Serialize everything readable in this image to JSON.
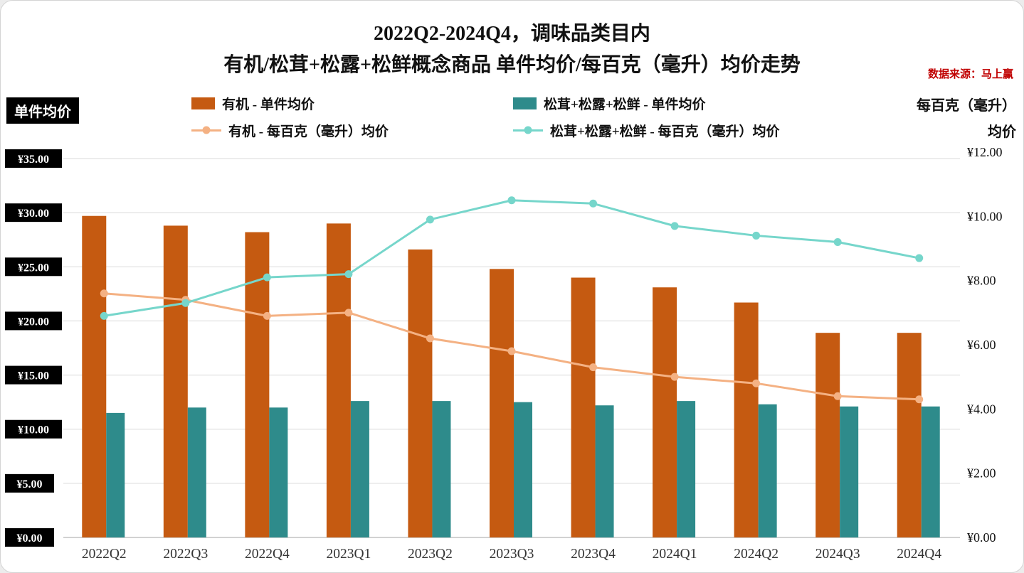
{
  "page": {
    "title_line1": "2022Q2-2024Q4，调味品类目内",
    "title_line2": "有机/松茸+松露+松鲜概念商品 单件均价/每百克（毫升）均价走势",
    "source_note": "数据来源：马上赢"
  },
  "left_axis": {
    "title": "单件均价"
  },
  "right_axis": {
    "title_lines": [
      "每百克（毫升）",
      "均价"
    ]
  },
  "colors": {
    "source_note": "#C00000",
    "gridline": "#DADADA",
    "axis_line": "#A6A6A6",
    "axis_label_bg": "#000000",
    "background": "#FFFFFF"
  },
  "chart_data": {
    "type": "combo",
    "title": "2022Q2-2024Q4，调味品类目内 有机/松茸+松露+松鲜概念商品 单件均价/每百克（毫升）均价走势",
    "grid": true,
    "legend_position": "top",
    "categories": [
      "2022Q2",
      "2022Q3",
      "2022Q4",
      "2023Q1",
      "2023Q2",
      "2023Q3",
      "2023Q4",
      "2024Q1",
      "2024Q2",
      "2024Q3",
      "2024Q4"
    ],
    "series": [
      {
        "key": "organic_unit",
        "name": "有机 - 单件均价",
        "type": "bar",
        "axis": "left",
        "color": "#C55A11",
        "values": [
          29.7,
          28.8,
          28.2,
          29.0,
          26.6,
          24.8,
          24.0,
          23.1,
          21.7,
          18.9,
          18.9
        ]
      },
      {
        "key": "mushroom_unit",
        "name": "松茸+松露+松鲜 - 单件均价",
        "type": "bar",
        "axis": "left",
        "color": "#2E8B8B",
        "values": [
          11.5,
          12.0,
          12.0,
          12.6,
          12.6,
          12.5,
          12.2,
          12.6,
          12.3,
          12.1,
          12.1
        ]
      },
      {
        "key": "organic_per100",
        "name": "有机 - 每百克（毫升）均价",
        "type": "line",
        "axis": "right",
        "color": "#F4B183",
        "values": [
          7.6,
          7.4,
          6.9,
          7.0,
          6.2,
          5.8,
          5.3,
          5.0,
          4.8,
          4.4,
          4.3
        ]
      },
      {
        "key": "mushroom_per100",
        "name": "松茸+松露+松鲜 - 每百克（毫升）均价",
        "type": "line",
        "axis": "right",
        "color": "#76D6CB",
        "values": [
          6.9,
          7.3,
          8.1,
          8.2,
          9.9,
          10.5,
          10.4,
          9.7,
          9.4,
          9.2,
          8.7
        ]
      }
    ],
    "left_axis": {
      "min": 0,
      "max": 35,
      "step": 5,
      "tick_prefix": "¥",
      "decimals": 2
    },
    "right_axis": {
      "min": 0,
      "max": 12,
      "step": 2,
      "tick_prefix": "¥",
      "decimals": 2
    }
  }
}
